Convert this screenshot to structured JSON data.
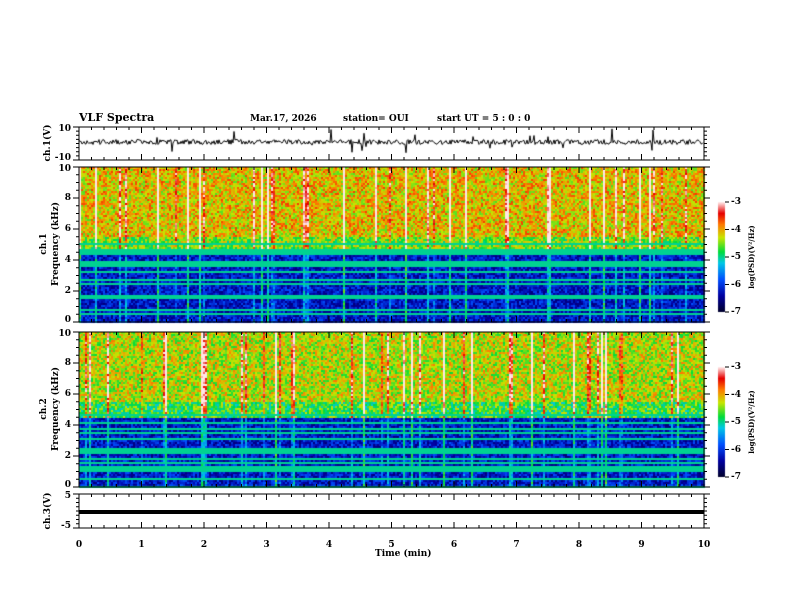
{
  "header": {
    "title": "VLF Spectra",
    "date": "Mar.17, 2026",
    "station": "station= OUI",
    "start": "start  UT =   5 : 0  : 0"
  },
  "chart_data": [
    {
      "type": "line",
      "name": "ch1 waveform",
      "ylabel": "ch.1(V)",
      "ylim": [
        -10,
        10
      ],
      "yticks": [
        "10",
        "-10"
      ],
      "baseline": 3
    },
    {
      "type": "heatmap",
      "name": "ch1 spectrogram",
      "ylabel": "ch.1\nFrequency (kHz)",
      "ylabel_a": "ch.1",
      "ylabel_b": "Frequency (kHz)",
      "ylim": [
        0,
        10
      ],
      "yticks": [
        "0",
        "2",
        "4",
        "6",
        "8",
        "10"
      ],
      "colorbar": {
        "label": "log(PSD)(V²/Hz)",
        "range": [
          -7,
          -3
        ],
        "ticks": [
          "-3",
          "-4",
          "-5",
          "-6",
          "-7"
        ]
      }
    },
    {
      "type": "heatmap",
      "name": "ch2 spectrogram",
      "ylabel_a": "ch.2",
      "ylabel_b": "Frequency (kHz)",
      "ylim": [
        0,
        10
      ],
      "yticks": [
        "0",
        "2",
        "4",
        "6",
        "8",
        "10"
      ],
      "colorbar": {
        "label": "log(PSD)(V²/Hz)",
        "range": [
          -7,
          -3
        ],
        "ticks": [
          "-3",
          "-4",
          "-5",
          "-6",
          "-7"
        ]
      }
    },
    {
      "type": "line",
      "name": "ch3 waveform",
      "ylabel": "ch.3(V)",
      "ylim": [
        -5,
        5
      ],
      "yticks": [
        "5",
        "-5"
      ],
      "value": 0
    }
  ],
  "xaxis": {
    "label": "Time (min)",
    "range": [
      0,
      10
    ],
    "ticks": [
      "0",
      "1",
      "2",
      "3",
      "4",
      "5",
      "6",
      "7",
      "8",
      "9",
      "10"
    ]
  }
}
